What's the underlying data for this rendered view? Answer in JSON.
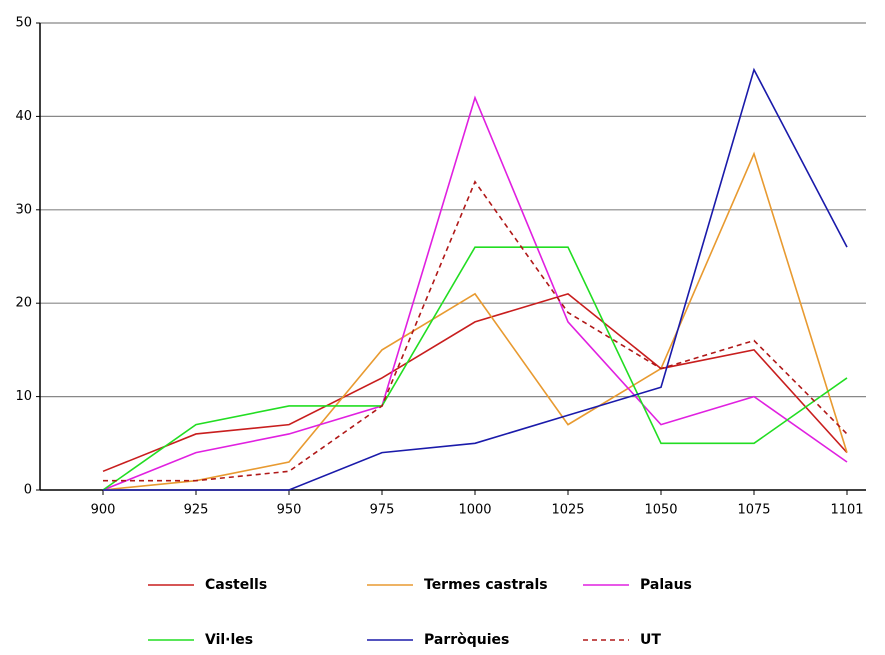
{
  "chart_data": {
    "type": "line",
    "categories": [
      "900",
      "925",
      "950",
      "975",
      "1000",
      "1025",
      "1050",
      "1075",
      "1101"
    ],
    "series": [
      {
        "name": "Castells",
        "color": "#c81e1e",
        "dash": false,
        "values": [
          2,
          6,
          7,
          12,
          18,
          21,
          13,
          15,
          4
        ]
      },
      {
        "name": "Termes castrals",
        "color": "#e89a30",
        "dash": false,
        "values": [
          0,
          1,
          3,
          15,
          21,
          7,
          13,
          36,
          4
        ]
      },
      {
        "name": "Palaus",
        "color": "#e020e0",
        "dash": false,
        "values": [
          0,
          4,
          6,
          9,
          42,
          18,
          7,
          10,
          3
        ]
      },
      {
        "name": "Vil·les",
        "color": "#22dd22",
        "dash": false,
        "values": [
          0,
          7,
          9,
          9,
          26,
          26,
          5,
          5,
          12
        ]
      },
      {
        "name": "Parròquies",
        "color": "#1a1aaa",
        "dash": false,
        "values": [
          0,
          0,
          0,
          4,
          5,
          8,
          11,
          45,
          26
        ]
      },
      {
        "name": "UT",
        "color": "#b01818",
        "dash": true,
        "values": [
          1,
          1,
          2,
          9,
          33,
          19,
          13,
          16,
          6
        ]
      }
    ],
    "ylim": [
      0,
      50
    ],
    "yticks": [
      0,
      10,
      20,
      30,
      40,
      50
    ],
    "grid": true,
    "legend": "bottom"
  }
}
